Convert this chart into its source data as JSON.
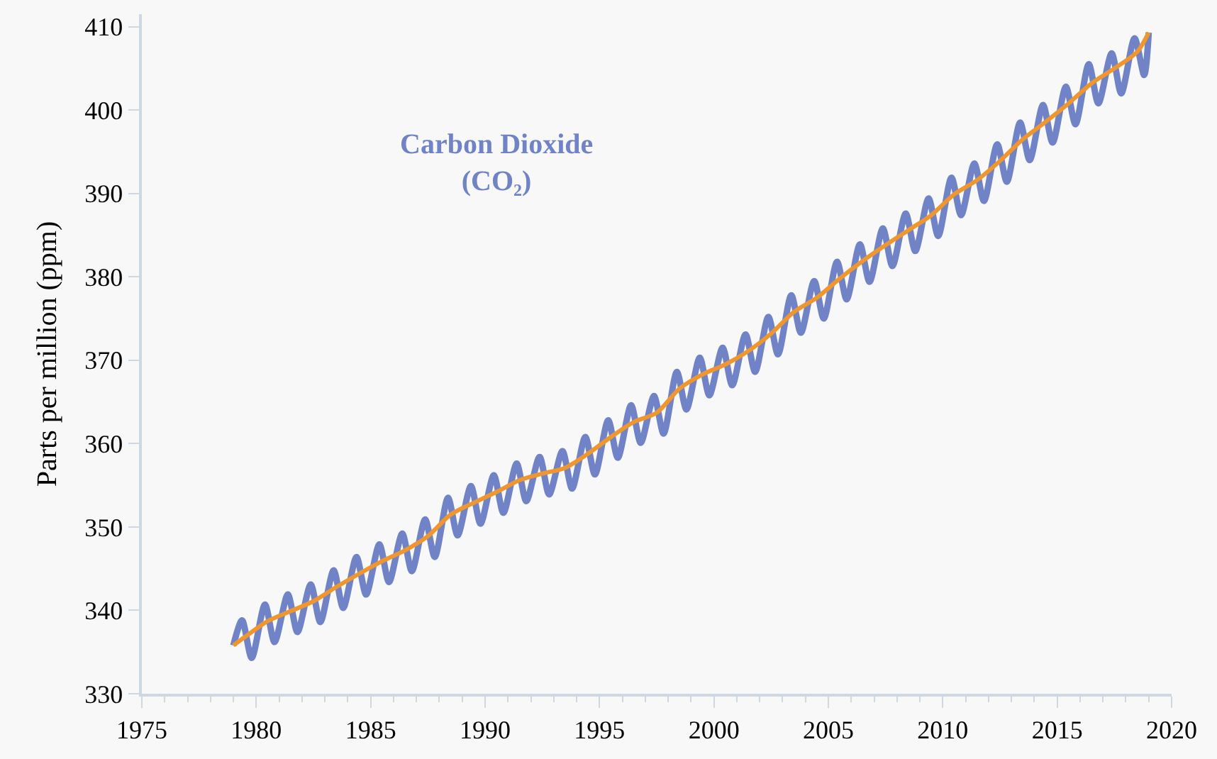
{
  "chart_data": {
    "type": "line",
    "ylabel": "Parts per million (ppm)",
    "annotations": [
      "Carbon Dioxide\n(CO₂)"
    ],
    "xlim": [
      1975,
      2020
    ],
    "xticks": [
      1975,
      1980,
      1985,
      1990,
      1995,
      2000,
      2005,
      2010,
      2015,
      2020
    ],
    "ylim": [
      330,
      411.5
    ],
    "yticks": [
      330,
      340,
      350,
      360,
      370,
      380,
      390,
      400,
      410
    ],
    "grid": false,
    "marker": "none",
    "line_style": "solid",
    "series": [
      {
        "color": "#6f83c6",
        "x": [
          1979.0,
          1979.38,
          1979.8,
          1980.38,
          1980.8,
          1981.38,
          1981.8,
          1982.38,
          1982.8,
          1983.38,
          1983.8,
          1984.38,
          1984.8,
          1985.38,
          1985.8,
          1986.38,
          1986.8,
          1987.38,
          1987.8,
          1988.38,
          1988.8,
          1989.38,
          1989.8,
          1990.38,
          1990.8,
          1991.38,
          1991.8,
          1992.38,
          1992.8,
          1993.38,
          1993.8,
          1994.38,
          1994.8,
          1995.38,
          1995.8,
          1996.38,
          1996.8,
          1997.38,
          1997.8,
          1998.38,
          1998.8,
          1999.38,
          1999.8,
          2000.38,
          2000.8,
          2001.38,
          2001.8,
          2002.38,
          2002.8,
          2003.38,
          2003.8,
          2004.38,
          2004.8,
          2005.38,
          2005.8,
          2006.38,
          2006.8,
          2007.38,
          2007.8,
          2008.38,
          2008.8,
          2009.38,
          2009.8,
          2010.38,
          2010.8,
          2011.38,
          2011.8,
          2012.38,
          2012.8,
          2013.38,
          2013.8,
          2014.38,
          2014.8,
          2015.38,
          2015.8,
          2016.38,
          2016.8,
          2017.38,
          2017.8,
          2018.38,
          2018.8,
          2019.0
        ],
        "values": [
          335.8,
          338.8,
          334.3,
          340.7,
          336.2,
          341.9,
          337.4,
          343.1,
          338.6,
          344.8,
          340.3,
          346.4,
          341.9,
          347.9,
          343.4,
          349.2,
          344.7,
          350.9,
          346.4,
          353.5,
          349.0,
          354.9,
          350.4,
          356.2,
          351.7,
          357.6,
          353.1,
          358.4,
          353.9,
          359.1,
          354.6,
          360.8,
          356.3,
          362.8,
          358.3,
          364.6,
          360.1,
          365.7,
          361.2,
          368.6,
          364.1,
          370.3,
          365.8,
          371.5,
          367.0,
          373.1,
          368.6,
          375.2,
          370.7,
          377.8,
          373.3,
          379.5,
          375.0,
          381.8,
          377.3,
          383.9,
          379.4,
          385.8,
          381.3,
          387.6,
          383.1,
          389.4,
          384.9,
          391.9,
          387.4,
          393.6,
          389.1,
          395.9,
          391.4,
          398.5,
          394.0,
          400.6,
          396.1,
          402.8,
          398.3,
          405.5,
          400.8,
          406.8,
          402.0,
          408.6,
          404.2,
          409.3
        ]
      },
      {
        "color": "#f0962e",
        "x": [
          1979.0,
          1979.5,
          1980.5,
          1981.5,
          1982.5,
          1983.5,
          1984.5,
          1985.5,
          1986.5,
          1987.5,
          1988.5,
          1989.5,
          1990.5,
          1991.5,
          1992.5,
          1993.5,
          1994.5,
          1995.5,
          1996.5,
          1997.5,
          1998.5,
          1999.5,
          2000.5,
          2001.5,
          2002.5,
          2003.5,
          2004.5,
          2005.5,
          2006.5,
          2007.5,
          2008.5,
          2009.5,
          2010.5,
          2011.5,
          2012.5,
          2013.5,
          2014.5,
          2015.5,
          2016.5,
          2017.5,
          2018.5,
          2019.0
        ],
        "values": [
          335.8,
          336.8,
          338.7,
          339.9,
          341.1,
          342.8,
          344.4,
          345.9,
          347.2,
          348.9,
          351.5,
          352.9,
          354.2,
          355.6,
          356.4,
          357.1,
          358.8,
          360.8,
          362.6,
          363.7,
          366.6,
          368.3,
          369.5,
          371.1,
          373.2,
          375.8,
          377.5,
          379.8,
          381.9,
          383.8,
          385.6,
          387.4,
          389.9,
          391.6,
          393.9,
          396.5,
          398.6,
          400.8,
          403.2,
          405.0,
          407.0,
          409.3
        ]
      }
    ]
  }
}
